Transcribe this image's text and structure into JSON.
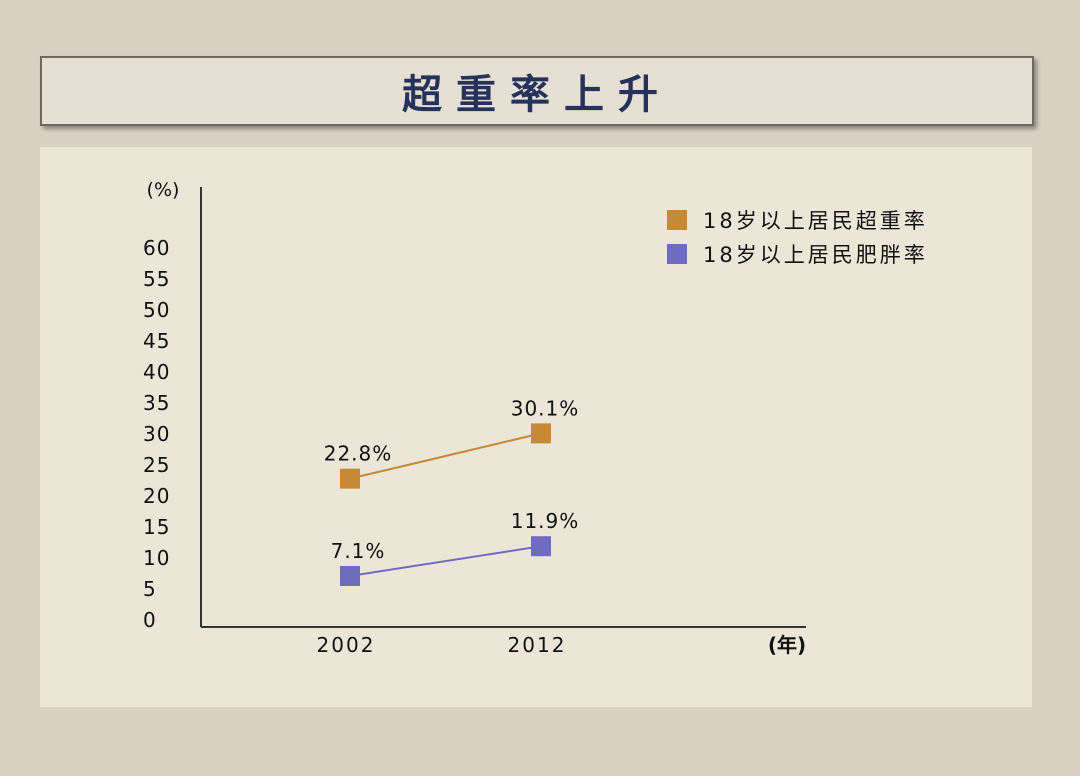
{
  "title": "超重率上升",
  "chart_data": {
    "type": "line",
    "title": "超重率上升",
    "ylabel": "(%)",
    "xlabel": "(年)",
    "categories": [
      "2002",
      "2012"
    ],
    "yticks": [
      "0",
      "5",
      "10",
      "15",
      "20",
      "25",
      "30",
      "35",
      "40",
      "45",
      "50",
      "55",
      "60"
    ],
    "ylim": [
      0,
      60
    ],
    "grid": false,
    "legend_position": "top-right",
    "series": [
      {
        "name": "18岁以上居民超重率",
        "values": [
          22.8,
          30.1
        ],
        "labels": [
          "22.8%",
          "30.1%"
        ],
        "color": "#c58a35"
      },
      {
        "name": "18岁以上居民肥胖率",
        "values": [
          7.1,
          11.9
        ],
        "labels": [
          "7.1%",
          "11.9%"
        ],
        "color": "#6f6bbf"
      }
    ]
  }
}
